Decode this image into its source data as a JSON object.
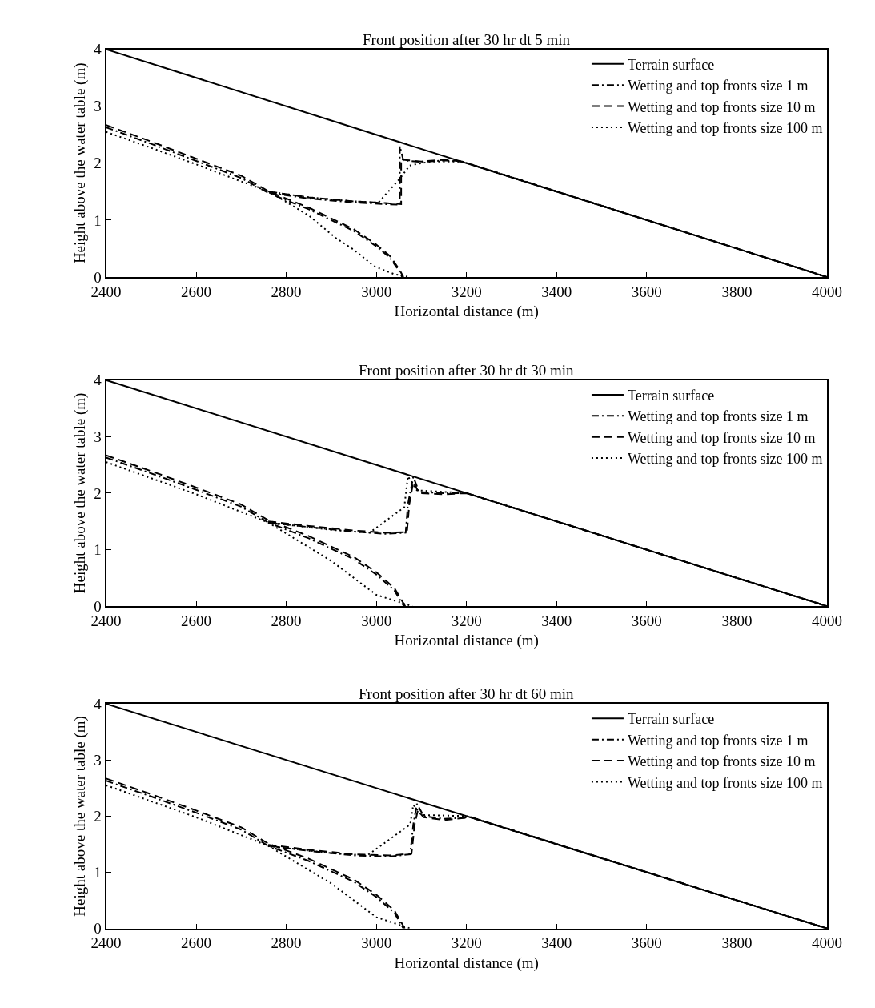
{
  "chart_data": [
    {
      "type": "line",
      "title": "Front position after 30 hr dt 5 min",
      "xlabel": "Horizontal distance (m)",
      "ylabel": "Height above the water table (m)",
      "xlim": [
        2400,
        4000
      ],
      "ylim": [
        0,
        4
      ],
      "xticks": [
        2400,
        2600,
        2800,
        3000,
        3200,
        3400,
        3600,
        3800,
        4000
      ],
      "yticks": [
        0,
        1,
        2,
        3,
        4
      ],
      "legend": "top right",
      "series": [
        {
          "name": "Terrain surface",
          "color": "#000000",
          "line_style": "solid",
          "x": [
            2400,
            4000
          ],
          "values": [
            4,
            0
          ]
        },
        {
          "name": "Wetting and top fronts size 1 m",
          "color": "#000000",
          "line_style": "dashdot",
          "x": [
            2400,
            2500,
            2600,
            2700,
            2762,
            2850,
            2950,
            3000,
            3030,
            3052,
            3057
          ],
          "values": [
            2.63,
            2.34,
            2.04,
            1.74,
            1.47,
            1.19,
            0.81,
            0.54,
            0.34,
            0.09,
            0
          ]
        },
        {
          "color": "#000000",
          "line_style": "dashdot",
          "x": [
            2762,
            2850,
            2950,
            3020,
            3052,
            3052,
            3060,
            3100,
            3150,
            3190,
            4000
          ],
          "values": [
            1.48,
            1.38,
            1.31,
            1.28,
            1.27,
            2.3,
            2.05,
            2.02,
            2.05,
            2.03,
            0
          ]
        },
        {
          "name": "Wetting and top fronts size 10 m",
          "color": "#000000",
          "line_style": "dashed",
          "x": [
            2400,
            2500,
            2600,
            2700,
            2762,
            2850,
            2950,
            3000,
            3030,
            3052,
            3060
          ],
          "values": [
            2.67,
            2.38,
            2.08,
            1.78,
            1.5,
            1.22,
            0.84,
            0.57,
            0.37,
            0.12,
            0
          ]
        },
        {
          "color": "#000000",
          "line_style": "dashed",
          "x": [
            2762,
            2850,
            2950,
            3020,
            3055,
            3055,
            3060,
            3100,
            3150,
            3190,
            4000
          ],
          "values": [
            1.5,
            1.4,
            1.33,
            1.3,
            1.28,
            2.08,
            2.06,
            2.03,
            2.06,
            2.03,
            0
          ]
        },
        {
          "name": "Wetting and top fronts size 100 m",
          "color": "#000000",
          "line_style": "dotted",
          "x": [
            2400,
            2500,
            2600,
            2700,
            2762,
            2850,
            2911,
            2950,
            2995,
            3040,
            3074
          ],
          "values": [
            2.55,
            2.27,
            1.98,
            1.68,
            1.5,
            1.08,
            0.68,
            0.48,
            0.19,
            0.05,
            0
          ]
        },
        {
          "color": "#000000",
          "line_style": "dotted",
          "x": [
            2762,
            2850,
            2950,
            3005,
            3052,
            3074,
            3120,
            3190,
            4000
          ],
          "values": [
            1.5,
            1.4,
            1.33,
            1.31,
            1.73,
            1.96,
            2.03,
            2.03,
            0
          ]
        }
      ]
    },
    {
      "type": "line",
      "title": "Front position after 30 hr dt 30 min",
      "xlabel": "Horizontal distance (m)",
      "ylabel": "Height above the water table (m)",
      "xlim": [
        2400,
        4000
      ],
      "ylim": [
        0,
        4
      ],
      "xticks": [
        2400,
        2600,
        2800,
        3000,
        3200,
        3400,
        3600,
        3800,
        4000
      ],
      "yticks": [
        0,
        1,
        2,
        3,
        4
      ],
      "legend": "top right",
      "series": [
        {
          "name": "Terrain surface",
          "color": "#000000",
          "line_style": "solid",
          "x": [
            2400,
            4000
          ],
          "values": [
            4,
            0
          ]
        },
        {
          "name": "Wetting and top fronts size 1 m",
          "color": "#000000",
          "line_style": "dashdot",
          "x": [
            2400,
            2500,
            2600,
            2700,
            2760,
            2850,
            2950,
            3000,
            3040,
            3061
          ],
          "values": [
            2.63,
            2.35,
            2.06,
            1.76,
            1.48,
            1.2,
            0.83,
            0.56,
            0.28,
            0
          ]
        },
        {
          "color": "#000000",
          "line_style": "dashdot",
          "x": [
            2760,
            2850,
            2950,
            3020,
            3065,
            3070,
            3082,
            3095,
            3150,
            3200,
            4000
          ],
          "values": [
            1.48,
            1.4,
            1.32,
            1.28,
            1.3,
            1.8,
            2.29,
            2.02,
            2.0,
            2.0,
            0
          ]
        },
        {
          "name": "Wetting and top fronts size 10 m",
          "color": "#000000",
          "line_style": "dashed",
          "x": [
            2400,
            2500,
            2600,
            2700,
            2760,
            2850,
            2950,
            3000,
            3040,
            3064
          ],
          "values": [
            2.67,
            2.39,
            2.1,
            1.8,
            1.52,
            1.24,
            0.87,
            0.6,
            0.32,
            0
          ]
        },
        {
          "color": "#000000",
          "line_style": "dashed",
          "x": [
            2760,
            2850,
            2950,
            3020,
            3068,
            3073,
            3082,
            3095,
            3150,
            3200,
            4000
          ],
          "values": [
            1.5,
            1.42,
            1.34,
            1.3,
            1.31,
            1.8,
            2.2,
            2.0,
            1.98,
            2.0,
            0
          ]
        },
        {
          "name": "Wetting and top fronts size 100 m",
          "color": "#000000",
          "line_style": "dotted",
          "x": [
            2400,
            2600,
            2760,
            2900,
            2950,
            3000,
            3080
          ],
          "values": [
            2.55,
            1.98,
            1.48,
            0.8,
            0.5,
            0.2,
            0
          ]
        },
        {
          "color": "#000000",
          "line_style": "dotted",
          "x": [
            2760,
            2900,
            2985,
            3062,
            3070,
            3090,
            3200,
            4000
          ],
          "values": [
            1.48,
            1.35,
            1.3,
            1.75,
            2.3,
            2.05,
            2.0,
            0
          ]
        }
      ]
    },
    {
      "type": "line",
      "title": "Front position after 30 hr dt 60 min",
      "xlabel": "Horizontal distance (m)",
      "ylabel": "Height above the water table (m)",
      "xlim": [
        2400,
        4000
      ],
      "ylim": [
        0,
        4
      ],
      "xticks": [
        2400,
        2600,
        2800,
        3000,
        3200,
        3400,
        3600,
        3800,
        4000
      ],
      "yticks": [
        0,
        1,
        2,
        3,
        4
      ],
      "legend": "top right",
      "series": [
        {
          "name": "Terrain surface",
          "color": "#000000",
          "line_style": "solid",
          "x": [
            2400,
            4000
          ],
          "values": [
            4,
            0
          ]
        },
        {
          "name": "Wetting and top fronts size 1 m",
          "color": "#000000",
          "line_style": "dashdot",
          "x": [
            2400,
            2500,
            2600,
            2700,
            2760,
            2850,
            2950,
            3000,
            3040,
            3060
          ],
          "values": [
            2.63,
            2.35,
            2.06,
            1.76,
            1.47,
            1.2,
            0.83,
            0.56,
            0.28,
            0
          ]
        },
        {
          "color": "#000000",
          "line_style": "dashdot",
          "x": [
            2760,
            2850,
            2950,
            3030,
            3075,
            3082,
            3090,
            3105,
            3150,
            3210,
            4000
          ],
          "values": [
            1.47,
            1.38,
            1.3,
            1.28,
            1.32,
            1.85,
            2.22,
            2.0,
            1.95,
            1.98,
            0
          ]
        },
        {
          "name": "Wetting and top fronts size 10 m",
          "color": "#000000",
          "line_style": "dashed",
          "x": [
            2400,
            2500,
            2600,
            2700,
            2760,
            2850,
            2950,
            3000,
            3040,
            3063
          ],
          "values": [
            2.67,
            2.39,
            2.1,
            1.8,
            1.51,
            1.24,
            0.87,
            0.6,
            0.32,
            0
          ]
        },
        {
          "color": "#000000",
          "line_style": "dashed",
          "x": [
            2760,
            2850,
            2950,
            3030,
            3078,
            3085,
            3092,
            3105,
            3150,
            3210,
            4000
          ],
          "values": [
            1.49,
            1.4,
            1.32,
            1.3,
            1.33,
            1.85,
            2.1,
            1.98,
            1.93,
            1.98,
            0
          ]
        },
        {
          "name": "Wetting and top fronts size 100 m",
          "color": "#000000",
          "line_style": "dotted",
          "x": [
            2400,
            2600,
            2760,
            2900,
            2950,
            3000,
            3075
          ],
          "values": [
            2.55,
            1.98,
            1.47,
            0.8,
            0.5,
            0.2,
            0
          ]
        },
        {
          "color": "#000000",
          "line_style": "dotted",
          "x": [
            2760,
            2900,
            2980,
            3075,
            3082,
            3100,
            3200,
            4000
          ],
          "values": [
            1.47,
            1.34,
            1.3,
            1.85,
            2.2,
            2.02,
            2.0,
            0
          ]
        }
      ]
    }
  ]
}
